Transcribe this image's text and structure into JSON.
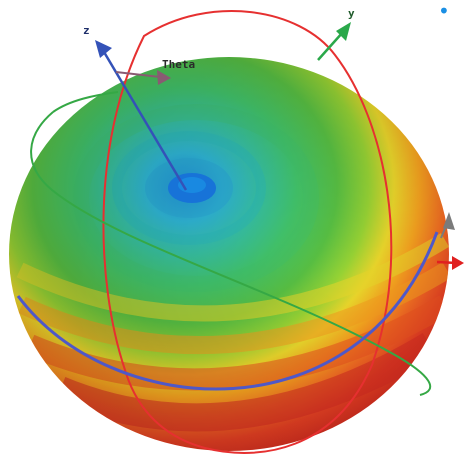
{
  "labels": {
    "z": "z",
    "y": "y",
    "theta": "Theta"
  },
  "colors": {
    "background": "#ffffff",
    "axis_z": "#3452b8",
    "axis_y": "#2aa84a",
    "axis_x": "#e02020",
    "theta_arrow": "#8a5a72",
    "phi_arrow": "#7b7b7b",
    "orbit_red": "#e63030",
    "orbit_green": "#35a845",
    "orbit_blue": "#4f58c8",
    "band_scale": [
      "#d02a20",
      "#e84422",
      "#f06f21",
      "#f6a21f",
      "#f8d92a",
      "#a7d735",
      "#58bf42",
      "#43c46b",
      "#2dbf9b",
      "#30b8cc",
      "#1c94dc"
    ]
  },
  "pattern": {
    "type": "3d-radiation-pattern"
  },
  "markers": {
    "dot": "•"
  }
}
